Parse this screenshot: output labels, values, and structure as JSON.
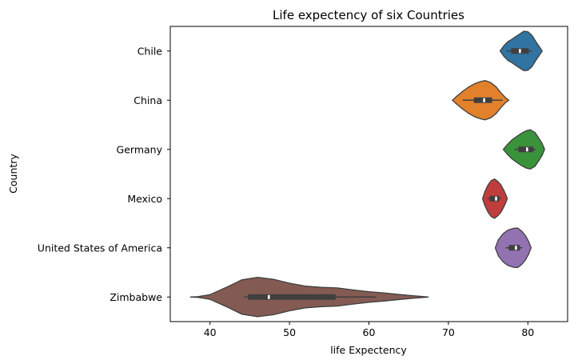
{
  "chart_data": {
    "type": "violin",
    "title": "Life expectency of six Countries",
    "xlabel": "life Expectency",
    "ylabel": "Country",
    "xlim": [
      35,
      85
    ],
    "xticks": [
      40,
      50,
      60,
      70,
      80
    ],
    "grid": false,
    "legend": "none",
    "categories": [
      "Chile",
      "China",
      "Germany",
      "Mexico",
      "United States of America",
      "Zimbabwe"
    ],
    "series": [
      {
        "category": "Chile",
        "color": "#3274a1",
        "min": 77.3,
        "q1": 77.9,
        "median": 79.0,
        "q3": 80.1,
        "max": 80.5,
        "density": [
          [
            76.5,
            0.0
          ],
          [
            77.0,
            0.28
          ],
          [
            77.5,
            0.48
          ],
          [
            78.0,
            0.6
          ],
          [
            78.5,
            0.74
          ],
          [
            79.0,
            0.87
          ],
          [
            79.5,
            1.0
          ],
          [
            80.0,
            0.98
          ],
          [
            80.5,
            0.8
          ],
          [
            81.0,
            0.48
          ],
          [
            81.5,
            0.18
          ],
          [
            81.8,
            0.0
          ]
        ]
      },
      {
        "category": "China",
        "color": "#e1812c",
        "min": 71.8,
        "q1": 73.2,
        "median": 74.5,
        "q3": 75.5,
        "max": 76.8,
        "density": [
          [
            70.5,
            0.0
          ],
          [
            71.0,
            0.18
          ],
          [
            71.7,
            0.42
          ],
          [
            72.5,
            0.66
          ],
          [
            73.3,
            0.84
          ],
          [
            74.0,
            0.94
          ],
          [
            74.6,
            1.0
          ],
          [
            75.3,
            0.9
          ],
          [
            76.0,
            0.68
          ],
          [
            76.6,
            0.38
          ],
          [
            77.2,
            0.12
          ],
          [
            77.6,
            0.0
          ]
        ]
      },
      {
        "category": "Germany",
        "color": "#3a923a",
        "min": 78.3,
        "q1": 78.8,
        "median": 79.9,
        "q3": 80.7,
        "max": 81.0,
        "density": [
          [
            76.9,
            0.0
          ],
          [
            77.4,
            0.24
          ],
          [
            78.0,
            0.48
          ],
          [
            78.6,
            0.66
          ],
          [
            79.2,
            0.82
          ],
          [
            79.8,
            0.95
          ],
          [
            80.3,
            1.0
          ],
          [
            80.9,
            0.86
          ],
          [
            81.4,
            0.56
          ],
          [
            81.8,
            0.3
          ],
          [
            82.1,
            0.0
          ]
        ]
      },
      {
        "category": "Mexico",
        "color": "#c03d3e",
        "min": 74.9,
        "q1": 75.2,
        "median": 76.0,
        "q3": 76.4,
        "max": 76.6,
        "density": [
          [
            74.3,
            0.0
          ],
          [
            74.6,
            0.36
          ],
          [
            75.0,
            0.7
          ],
          [
            75.4,
            0.92
          ],
          [
            75.8,
            1.0
          ],
          [
            76.2,
            0.88
          ],
          [
            76.6,
            0.7
          ],
          [
            77.0,
            0.4
          ],
          [
            77.3,
            0.12
          ],
          [
            77.4,
            0.0
          ]
        ]
      },
      {
        "category": "United States of America",
        "color": "#9372b2",
        "min": 77.2,
        "q1": 77.6,
        "median": 78.5,
        "q3": 79.0,
        "max": 79.3,
        "density": [
          [
            75.9,
            0.0
          ],
          [
            76.3,
            0.42
          ],
          [
            76.9,
            0.72
          ],
          [
            77.5,
            0.9
          ],
          [
            78.2,
            0.99
          ],
          [
            78.7,
            1.0
          ],
          [
            79.2,
            0.86
          ],
          [
            79.7,
            0.62
          ],
          [
            80.1,
            0.32
          ],
          [
            80.4,
            0.0
          ]
        ]
      },
      {
        "category": "Zimbabwe",
        "color": "#845b53",
        "min": 44.3,
        "q1": 44.8,
        "median": 47.4,
        "q3": 55.8,
        "max": 60.9,
        "density": [
          [
            37.5,
            0.0
          ],
          [
            38.5,
            0.02
          ],
          [
            40.0,
            0.12
          ],
          [
            42.0,
            0.48
          ],
          [
            44.0,
            0.87
          ],
          [
            46.0,
            1.0
          ],
          [
            48.0,
            0.9
          ],
          [
            50.0,
            0.7
          ],
          [
            52.0,
            0.55
          ],
          [
            54.0,
            0.49
          ],
          [
            56.0,
            0.46
          ],
          [
            58.0,
            0.36
          ],
          [
            60.0,
            0.27
          ],
          [
            62.0,
            0.2
          ],
          [
            64.0,
            0.12
          ],
          [
            66.0,
            0.05
          ],
          [
            67.5,
            0.0
          ]
        ]
      }
    ]
  }
}
